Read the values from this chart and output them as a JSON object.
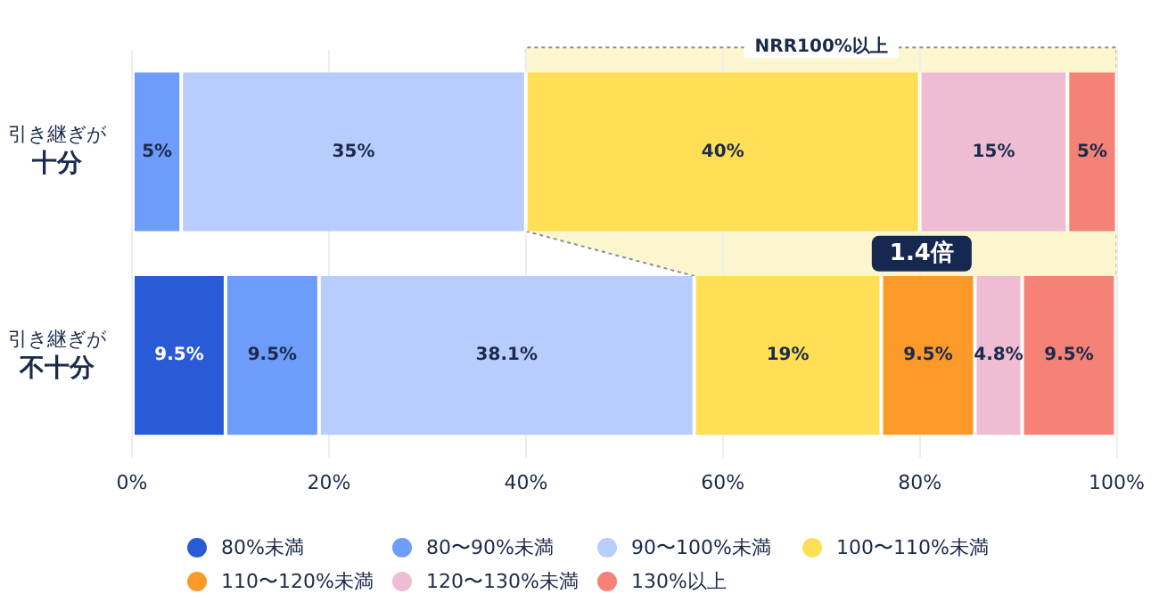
{
  "chart_data": {
    "type": "bar",
    "orientation": "horizontal",
    "stacked": true,
    "categories": [
      "引き継ぎが十分",
      "引き継ぎが不十分"
    ],
    "series": [
      {
        "name": "80%未満",
        "color": "#2a5bd7",
        "values": [
          null,
          9.5
        ],
        "value_labels": [
          null,
          "9.5%"
        ]
      },
      {
        "name": "80〜90%未満",
        "color": "#6e9cfb",
        "values": [
          5,
          9.5
        ],
        "value_labels": [
          "5%",
          "9.5%"
        ]
      },
      {
        "name": "90〜100%未満",
        "color": "#b9cdfd",
        "values": [
          35,
          38.1
        ],
        "value_labels": [
          "35%",
          "38.1%"
        ]
      },
      {
        "name": "100〜110%未満",
        "color": "#fedf55",
        "values": [
          40,
          19
        ],
        "value_labels": [
          "40%",
          "19%"
        ]
      },
      {
        "name": "110〜120%未満",
        "color": "#fc9a29",
        "values": [
          null,
          9.5
        ],
        "value_labels": [
          null,
          "9.5%"
        ]
      },
      {
        "name": "120〜130%未満",
        "color": "#eebdd3",
        "values": [
          15,
          4.8
        ],
        "value_labels": [
          "15%",
          "4.8%"
        ]
      },
      {
        "name": "130%以上",
        "color": "#f48276",
        "values": [
          5,
          9.5
        ],
        "value_labels": [
          "5%",
          "9.5%"
        ]
      }
    ],
    "xlim": [
      0,
      100
    ],
    "xticks": [
      {
        "value": 0,
        "label": "0%"
      },
      {
        "value": 20,
        "label": "20%"
      },
      {
        "value": 40,
        "label": "40%"
      },
      {
        "value": 60,
        "label": "60%"
      },
      {
        "value": 80,
        "label": "80%"
      },
      {
        "value": 100,
        "label": "100%"
      }
    ],
    "grid": "x",
    "legend": "bottom",
    "marker": "circle",
    "bands": [
      {
        "axis": "x",
        "from": 40,
        "to": 100,
        "label": "NRR100%以上",
        "color": "#fcf6cf"
      }
    ],
    "annotations": [
      "1.4倍"
    ]
  }
}
